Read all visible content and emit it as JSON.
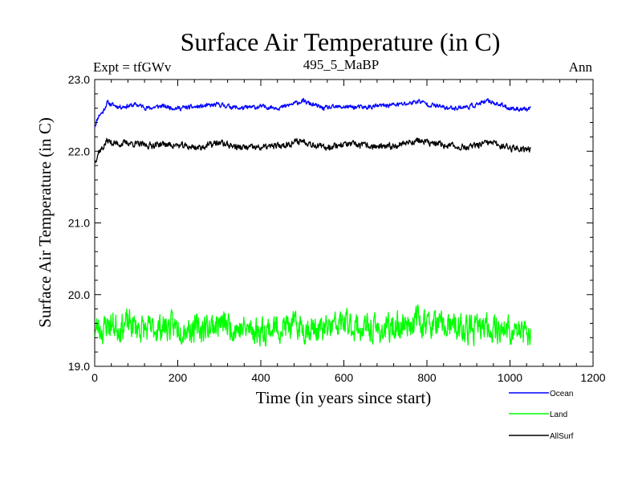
{
  "chart_data": {
    "type": "line",
    "title": "Surface Air Temperature (in C)",
    "subtitle": "495_5_MaBP",
    "experiment_label": "Expt = tfGWv",
    "season_label": "Ann",
    "xlabel": "Time (in years since start)",
    "ylabel": "Surface Air Temperature (in C)",
    "xlim": [
      0,
      1200
    ],
    "ylim": [
      19.0,
      23.0
    ],
    "x_ticks": [
      0,
      200,
      400,
      600,
      800,
      1000,
      1200
    ],
    "y_ticks": [
      19.0,
      20.0,
      21.0,
      22.0,
      23.0
    ],
    "x_tick_labels": [
      "0",
      "200",
      "400",
      "600",
      "800",
      "1000",
      "1200"
    ],
    "y_tick_labels": [
      "19.0",
      "20.0",
      "21.0",
      "22.0",
      "23.0"
    ],
    "grid": false,
    "legend_position": "bottom-right",
    "series": [
      {
        "name": "Ocean",
        "color": "#0000ff",
        "x": [
          0,
          10,
          20,
          30,
          40,
          60,
          80,
          100,
          130,
          160,
          200,
          250,
          300,
          350,
          400,
          450,
          500,
          550,
          600,
          650,
          700,
          750,
          780,
          800,
          850,
          900,
          950,
          1000,
          1050
        ],
        "values": [
          22.35,
          22.5,
          22.55,
          22.68,
          22.65,
          22.62,
          22.63,
          22.65,
          22.6,
          22.63,
          22.6,
          22.62,
          22.65,
          22.6,
          22.62,
          22.61,
          22.7,
          22.6,
          22.62,
          22.61,
          22.64,
          22.66,
          22.7,
          22.66,
          22.6,
          22.62,
          22.7,
          22.6,
          22.58
        ],
        "amplitude": 0.05
      },
      {
        "name": "Land",
        "color": "#00ff00",
        "x": [
          0,
          10,
          20,
          30,
          40,
          60,
          80,
          100,
          130,
          160,
          200,
          250,
          300,
          350,
          400,
          450,
          500,
          550,
          600,
          650,
          700,
          750,
          780,
          800,
          850,
          900,
          950,
          1000,
          1050
        ],
        "values": [
          19.5,
          19.55,
          19.5,
          19.6,
          19.58,
          19.55,
          19.6,
          19.55,
          19.5,
          19.55,
          19.55,
          19.52,
          19.6,
          19.52,
          19.5,
          19.55,
          19.55,
          19.5,
          19.6,
          19.52,
          19.5,
          19.6,
          19.65,
          19.6,
          19.55,
          19.5,
          19.55,
          19.5,
          19.45
        ],
        "amplitude": 0.3
      },
      {
        "name": "AllSurf",
        "color": "#000000",
        "x": [
          0,
          10,
          20,
          30,
          40,
          60,
          80,
          100,
          130,
          160,
          200,
          250,
          300,
          350,
          400,
          450,
          500,
          550,
          600,
          650,
          700,
          750,
          780,
          800,
          850,
          900,
          950,
          1000,
          1050
        ],
        "values": [
          21.85,
          22.0,
          22.05,
          22.15,
          22.12,
          22.1,
          22.12,
          22.1,
          22.08,
          22.1,
          22.08,
          22.05,
          22.12,
          22.05,
          22.05,
          22.08,
          22.15,
          22.05,
          22.1,
          22.08,
          22.05,
          22.12,
          22.15,
          22.12,
          22.08,
          22.05,
          22.12,
          22.05,
          22.03
        ],
        "amplitude": 0.07
      }
    ]
  }
}
